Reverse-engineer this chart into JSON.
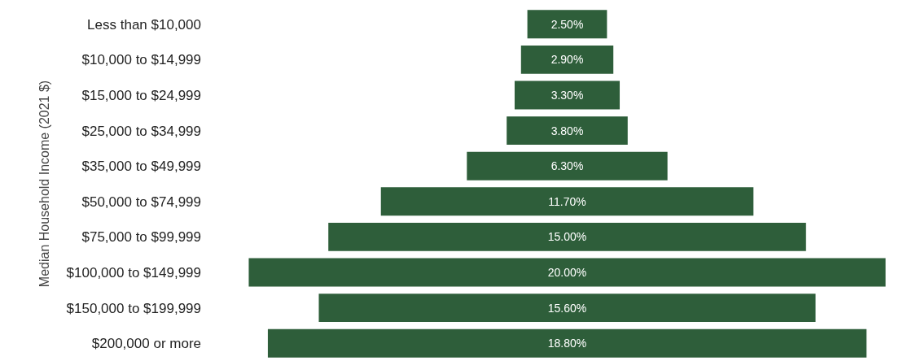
{
  "chart_data": {
    "type": "other",
    "ylabel": "Median Household Income (2021 $)",
    "categories": [
      "Less than $10,000",
      "$10,000 to $14,999",
      "$15,000 to $24,999",
      "$25,000 to $34,999",
      "$35,000 to $49,999",
      "$50,000 to $74,999",
      "$75,000 to $99,999",
      "$100,000 to $149,999",
      "$150,000 to $199,999",
      "$200,000 or more"
    ],
    "values": [
      2.5,
      2.9,
      3.3,
      3.8,
      6.3,
      11.7,
      15.0,
      20.0,
      15.6,
      18.8
    ],
    "value_labels": [
      "2.50%",
      "2.90%",
      "3.30%",
      "3.80%",
      "6.30%",
      "11.70%",
      "15.00%",
      "20.00%",
      "15.60%",
      "18.80%"
    ],
    "color": "#2e5e3a"
  }
}
